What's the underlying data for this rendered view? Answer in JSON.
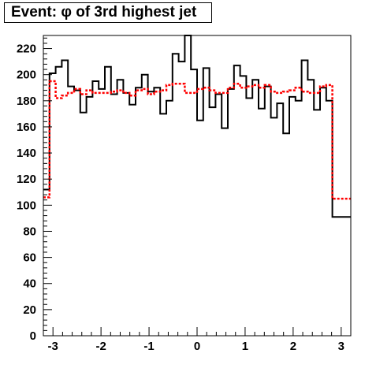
{
  "chart_data": {
    "type": "line",
    "title": "Event: φ of 3rd highest jet",
    "xlabel": "",
    "ylabel": "",
    "xlim": [
      -3.2,
      3.2
    ],
    "ylim": [
      0,
      230
    ],
    "x_ticks": [
      -3,
      -2,
      -1,
      0,
      1,
      2,
      3
    ],
    "x_tick_labels": [
      "-3",
      "-2",
      "-1",
      "0",
      "1",
      "2",
      "3"
    ],
    "y_ticks": [
      0,
      20,
      40,
      60,
      80,
      100,
      120,
      140,
      160,
      180,
      200,
      220
    ],
    "y_tick_labels": [
      "0",
      "20",
      "40",
      "60",
      "80",
      "100",
      "120",
      "140",
      "160",
      "180",
      "200",
      "220"
    ],
    "bin_edges": [
      -3.2,
      -3.072,
      -2.944,
      -2.816,
      -2.688,
      -2.56,
      -2.432,
      -2.304,
      -2.176,
      -2.048,
      -1.92,
      -1.792,
      -1.664,
      -1.536,
      -1.408,
      -1.28,
      -1.152,
      -1.024,
      -0.896,
      -0.768,
      -0.64,
      -0.512,
      -0.384,
      -0.256,
      -0.128,
      0.0,
      0.128,
      0.256,
      0.384,
      0.512,
      0.64,
      0.768,
      0.896,
      1.024,
      1.152,
      1.28,
      1.408,
      1.536,
      1.664,
      1.792,
      1.92,
      2.048,
      2.176,
      2.304,
      2.432,
      2.56,
      2.688,
      2.816,
      2.944,
      3.072,
      3.2
    ],
    "series": [
      {
        "style": "solid",
        "color": "#000000",
        "values": [
          112,
          201,
          206,
          211,
          191,
          188,
          171,
          183,
          195,
          189,
          206,
          185,
          196,
          186,
          177,
          190,
          200,
          187,
          190,
          170,
          180,
          216,
          210,
          230,
          204,
          165,
          205,
          175,
          185,
          159,
          189,
          207,
          199,
          182,
          196,
          174,
          191,
          167,
          178,
          155,
          183,
          180,
          211,
          196,
          173,
          190,
          180,
          91,
          91,
          91
        ]
      },
      {
        "style": "dotted",
        "color": "#ff0000",
        "values": [
          106,
          195,
          182,
          184,
          186,
          189,
          185,
          188,
          186,
          186,
          186,
          187,
          188,
          186,
          184,
          188,
          189,
          185,
          187,
          188,
          192,
          193,
          193,
          186,
          186,
          189,
          190,
          188,
          186,
          186,
          190,
          193,
          190,
          191,
          192,
          190,
          192,
          187,
          186,
          187,
          188,
          190,
          187,
          186,
          186,
          191,
          192,
          105,
          105,
          105
        ]
      }
    ]
  }
}
